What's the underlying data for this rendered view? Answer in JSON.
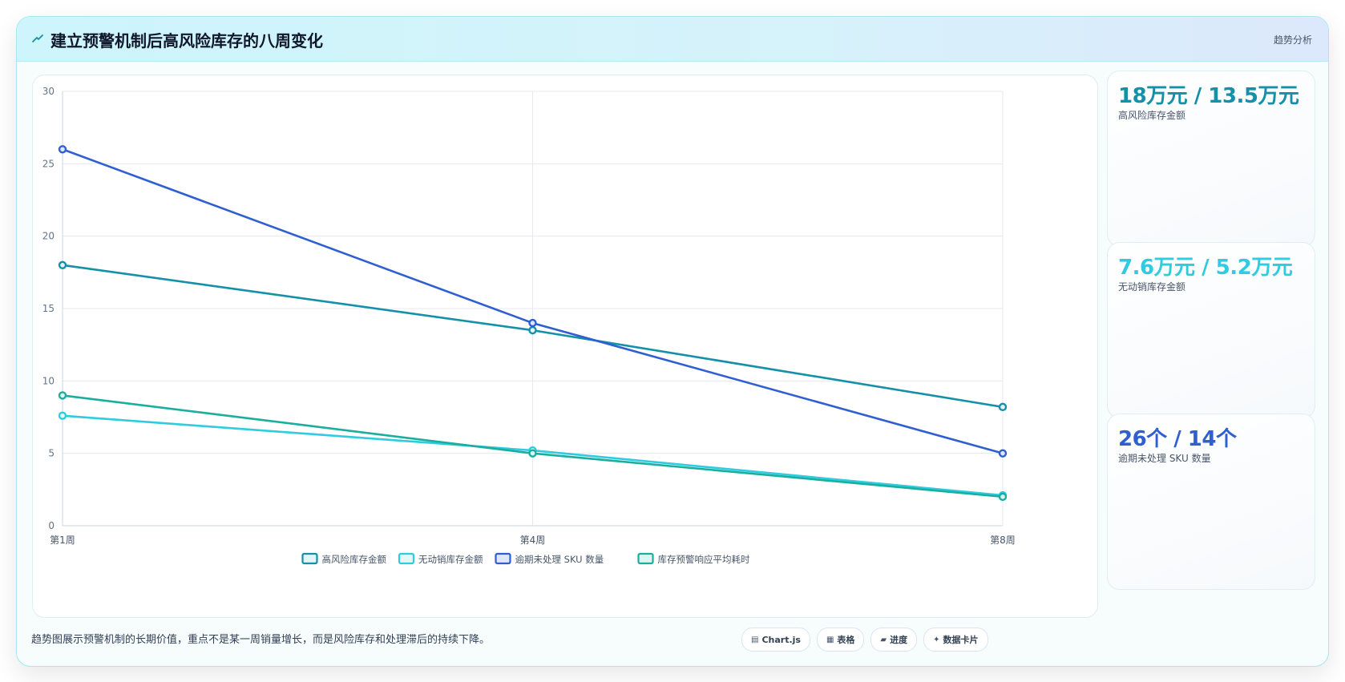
{
  "header": {
    "icon": "trend-icon",
    "title": "建立预警机制后高风险库存的八周变化",
    "tag": "趋势分析"
  },
  "stats": [
    {
      "value": "18万元 / 13.5万元",
      "label": "高风险库存金额",
      "color": "#1490a8"
    },
    {
      "value": "7.6万元 / 5.2万元",
      "label": "无动销库存金额",
      "color": "#2fcbe0"
    },
    {
      "value": "26个 / 14个",
      "label": "逾期未处理 SKU 数量",
      "color": "#2f5fd0"
    }
  ],
  "footer": {
    "note": "趋势图展示预警机制的长期价值，重点不是某一周销量增长，而是风险库存和处理滞后的持续下降。",
    "chips": [
      {
        "icon": "chart-icon",
        "glyph": "▤",
        "label": "Chart.js"
      },
      {
        "icon": "table-icon",
        "glyph": "▦",
        "label": "表格"
      },
      {
        "icon": "progress-icon",
        "glyph": "▰",
        "label": "进度"
      },
      {
        "icon": "sparkle-icon",
        "glyph": "✦",
        "label": "数据卡片"
      }
    ]
  },
  "chart_data": {
    "type": "line",
    "categories": [
      "第1周",
      "第4周",
      "第8周"
    ],
    "ylim": [
      0,
      30
    ],
    "yticks": [
      0,
      5,
      10,
      15,
      20,
      25,
      30
    ],
    "grid": true,
    "legend_position": "bottom",
    "series": [
      {
        "name": "高风险库存金额",
        "values": [
          18,
          13.5,
          8.2
        ],
        "color": "#1490a8",
        "fill": "#e3f4f7"
      },
      {
        "name": "无动销库存金额",
        "values": [
          7.6,
          5.2,
          2.1
        ],
        "color": "#2fcbe0",
        "fill": "#e3f8fb"
      },
      {
        "name": "逾期未处理 SKU 数量",
        "values": [
          26,
          14,
          5
        ],
        "color": "#2f5fd0",
        "fill": "#dfe7fb"
      },
      {
        "name": "库存预警响应平均耗时",
        "values": [
          9,
          5,
          2
        ],
        "color": "#1aae9f",
        "fill": "#ddf5f1"
      }
    ]
  }
}
